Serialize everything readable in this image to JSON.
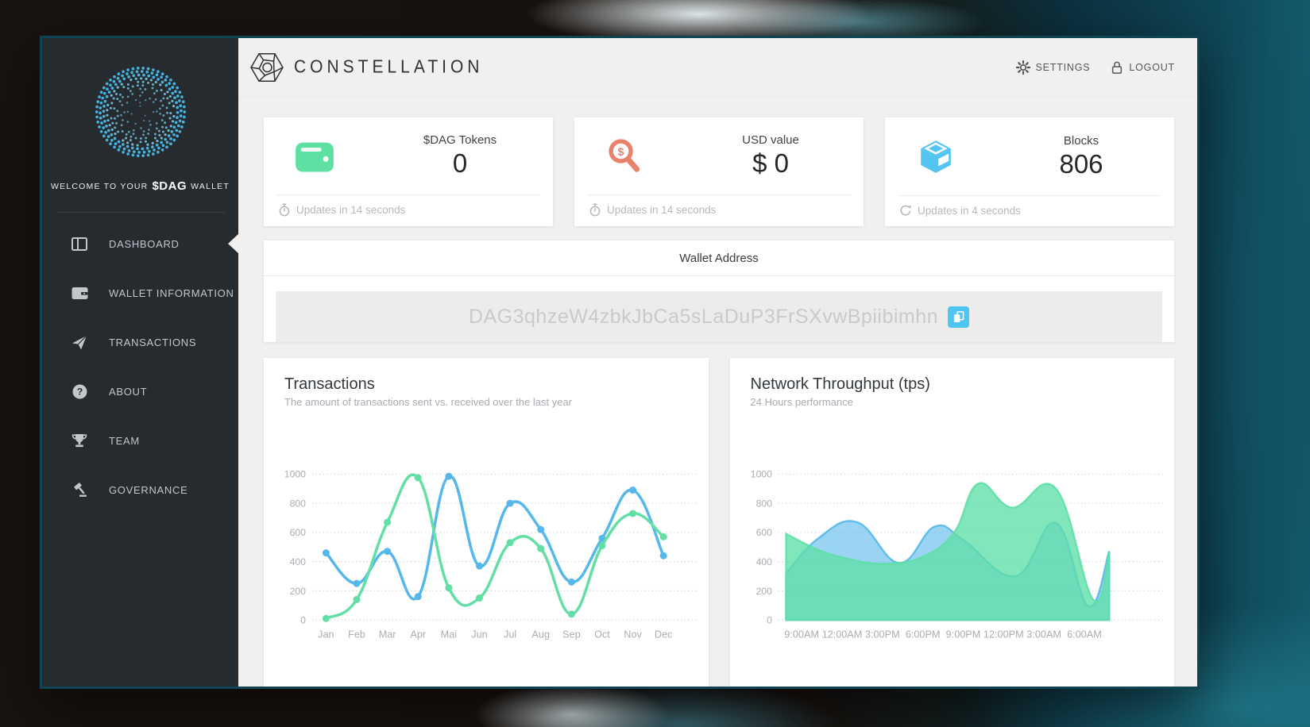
{
  "sidebar": {
    "welcome_prefix": "WELCOME TO YOUR",
    "welcome_highlight": "$DAG",
    "welcome_suffix": "WALLET",
    "items": [
      {
        "label": "DASHBOARD",
        "icon": "dashboard-icon",
        "active": true
      },
      {
        "label": "WALLET INFORMATION",
        "icon": "wallet-icon",
        "active": false
      },
      {
        "label": "TRANSACTIONS",
        "icon": "send-icon",
        "active": false
      },
      {
        "label": "ABOUT",
        "icon": "question-icon",
        "active": false
      },
      {
        "label": "TEAM",
        "icon": "trophy-icon",
        "active": false
      },
      {
        "label": "GOVERNANCE",
        "icon": "gavel-icon",
        "active": false
      }
    ]
  },
  "header": {
    "brand": "CONSTELLATION",
    "settings_label": "SETTINGS",
    "logout_label": "LOGOUT"
  },
  "stats": [
    {
      "label": "$DAG Tokens",
      "value": "0",
      "icon": "wallet-icon",
      "update_text": "Updates in 14 seconds",
      "update_icon": "stopwatch-icon"
    },
    {
      "label": "USD value",
      "value": "$ 0",
      "icon": "dollar-magnifier-icon",
      "update_text": "Updates in 14 seconds",
      "update_icon": "stopwatch-icon"
    },
    {
      "label": "Blocks",
      "value": "806",
      "icon": "cube-icon",
      "update_text": "Updates in 4 seconds",
      "update_icon": "refresh-icon"
    }
  ],
  "wallet_address": {
    "title": "Wallet Address",
    "address": "DAG3qhzeW4zbkJbCa5sLaDuP3FrSXvwBpiibimhn",
    "copy_icon": "copy-icon"
  },
  "colors": {
    "accent_green": "#5de0a1",
    "accent_coral": "#e8826a",
    "accent_blue": "#54c5f0",
    "chart_blue": "#56b8ea",
    "chart_green": "#63dfa6",
    "sidebar_bg": "#262b30",
    "content_bg": "#f1f0ee"
  },
  "chart_data": [
    {
      "type": "line",
      "title": "Transactions",
      "subtitle": "The amount of transactions sent vs. received over the last year",
      "categories": [
        "Jan",
        "Feb",
        "Mar",
        "Apr",
        "Mai",
        "Jun",
        "Jul",
        "Aug",
        "Sep",
        "Oct",
        "Nov",
        "Dec"
      ],
      "series": [
        {
          "name": "blue",
          "color": "#56b8ea",
          "values": [
            460,
            250,
            470,
            160,
            985,
            370,
            800,
            620,
            260,
            560,
            890,
            440
          ]
        },
        {
          "name": "green",
          "color": "#63dfa6",
          "values": [
            10,
            140,
            670,
            975,
            220,
            150,
            530,
            490,
            40,
            510,
            730,
            570
          ]
        }
      ],
      "ylim": [
        0,
        1000
      ],
      "yticks": [
        0,
        200,
        400,
        600,
        800,
        1000
      ],
      "grid": "horizontal-dotted",
      "legend": "none",
      "markers": true
    },
    {
      "type": "area",
      "title": "Network Throughput (tps)",
      "subtitle": "24 Hours performance",
      "categories": [
        "9:00AM",
        "12:00AM",
        "3:00PM",
        "6:00PM",
        "9:00PM",
        "12:00PM",
        "3:00AM",
        "6:00AM"
      ],
      "series": [
        {
          "name": "blue",
          "color": "#56b8ea",
          "fill_opacity": 0.6,
          "points": [
            [
              0,
              320
            ],
            [
              0.1,
              560
            ],
            [
              0.22,
              670
            ],
            [
              0.35,
              390
            ],
            [
              0.46,
              640
            ],
            [
              0.55,
              545
            ],
            [
              0.71,
              300
            ],
            [
              0.835,
              665
            ],
            [
              0.935,
              95
            ],
            [
              1,
              470
            ]
          ]
        },
        {
          "name": "green",
          "color": "#5fdfa8",
          "fill_opacity": 0.78,
          "points": [
            [
              0,
              590
            ],
            [
              0.1,
              480
            ],
            [
              0.2,
              415
            ],
            [
              0.3,
              385
            ],
            [
              0.42,
              430
            ],
            [
              0.52,
              600
            ],
            [
              0.595,
              935
            ],
            [
              0.7,
              770
            ],
            [
              0.835,
              900
            ],
            [
              0.95,
              140
            ],
            [
              1,
              460
            ]
          ]
        }
      ],
      "ylim": [
        0,
        1000
      ],
      "yticks": [
        0,
        200,
        400,
        600,
        800,
        1000
      ],
      "grid": "horizontal-dotted",
      "legend": "none"
    }
  ]
}
